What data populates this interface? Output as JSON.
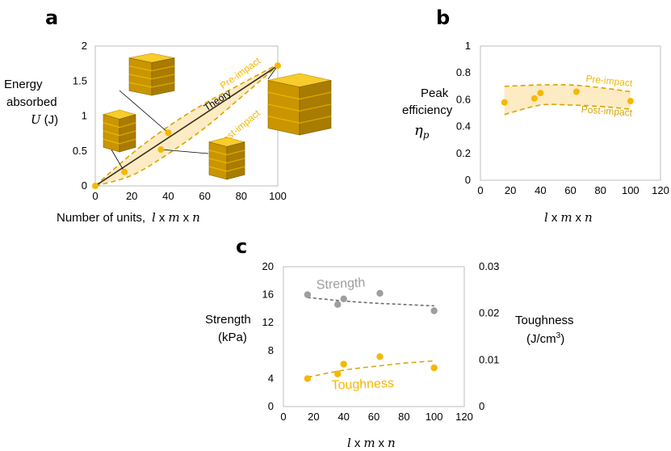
{
  "chart_data": [
    {
      "panel": "a",
      "type": "scatter",
      "ylabel_lines": [
        "Energy",
        "absorbed"
      ],
      "ylabel_symbol": "U",
      "ylabel_unit": "(J)",
      "xlabel": "Number of units,",
      "xlabel_math": [
        "l",
        "x",
        "m",
        "x",
        "n"
      ],
      "xlim": [
        0,
        100
      ],
      "ylim": [
        0,
        2
      ],
      "xticks": [
        0,
        20,
        40,
        60,
        80,
        100
      ],
      "yticks": [
        0,
        0.5,
        1,
        1.5,
        2
      ],
      "points": {
        "x": [
          0,
          16,
          36,
          40,
          100
        ],
        "y": [
          0,
          0.2,
          0.52,
          0.76,
          1.72
        ]
      },
      "theory": {
        "label": "Theory",
        "x": [
          0,
          100
        ],
        "y": [
          0,
          1.72
        ]
      },
      "band": {
        "upper": {
          "label": "Pre-impact",
          "x": [
            0,
            20,
            40,
            60,
            80,
            100
          ],
          "y": [
            0,
            0.46,
            0.85,
            1.18,
            1.46,
            1.74
          ]
        },
        "lower": {
          "label": "Post-impact",
          "x": [
            0,
            20,
            40,
            60,
            80,
            100
          ],
          "y": [
            0,
            0.15,
            0.46,
            0.83,
            1.27,
            1.72
          ]
        }
      },
      "insets": [
        "lattice-4x4x1",
        "lattice-4x4x2",
        "lattice-3x3x4",
        "lattice-4x4x4",
        "lattice-5x5x4"
      ],
      "color": "#F5B800"
    },
    {
      "panel": "b",
      "type": "scatter",
      "ylabel_lines": [
        "Peak",
        "efficiency"
      ],
      "ylabel_symbol": "η",
      "ylabel_sub": "p",
      "xlabel_math": [
        "l",
        "x",
        "m",
        "x",
        "n"
      ],
      "xlim": [
        0,
        120
      ],
      "ylim": [
        0,
        1
      ],
      "xticks": [
        0,
        20,
        40,
        60,
        80,
        100,
        120
      ],
      "yticks": [
        0,
        0.2,
        0.4,
        0.6,
        0.8,
        1
      ],
      "points": {
        "x": [
          16,
          36,
          40,
          64,
          100
        ],
        "y": [
          0.58,
          0.61,
          0.65,
          0.66,
          0.59
        ]
      },
      "band": {
        "upper": {
          "label": "Pre-impact",
          "x": [
            16,
            40,
            60,
            80,
            100
          ],
          "y": [
            0.7,
            0.71,
            0.71,
            0.69,
            0.66
          ]
        },
        "lower": {
          "label": "Post-impact",
          "x": [
            16,
            40,
            60,
            80,
            100
          ],
          "y": [
            0.49,
            0.56,
            0.56,
            0.55,
            0.53
          ]
        }
      },
      "color": "#F5B800"
    },
    {
      "panel": "c",
      "type": "scatter",
      "ylabel_lines": [
        "Strength",
        "(kPa)"
      ],
      "y2label_lines": [
        "Toughness",
        "(J/cm",
        "3",
        ")"
      ],
      "xlabel_math": [
        "l",
        "x",
        "m",
        "x",
        "n"
      ],
      "xlim": [
        0,
        120
      ],
      "ylim": [
        0,
        20
      ],
      "y2lim": [
        0,
        0.03
      ],
      "xticks": [
        0,
        20,
        40,
        60,
        80,
        100,
        120
      ],
      "yticks": [
        0,
        4,
        8,
        12,
        16,
        20
      ],
      "y2ticks": [
        0,
        0.01,
        0.02,
        0.03
      ],
      "series": [
        {
          "name": "Strength",
          "axis": "left",
          "x": [
            16,
            36,
            40,
            64,
            100
          ],
          "y": [
            16.0,
            14.6,
            15.4,
            16.2,
            13.7
          ],
          "trend": {
            "x": [
              16,
              40,
              60,
              80,
              100
            ],
            "y": [
              15.6,
              15.1,
              14.8,
              14.6,
              14.4
            ]
          },
          "color": "#9E9E9E"
        },
        {
          "name": "Toughness",
          "axis": "right",
          "x": [
            16,
            36,
            40,
            64,
            100
          ],
          "y": [
            0.006,
            0.007,
            0.0091,
            0.0107,
            0.0083
          ],
          "trend": {
            "x": [
              16,
              40,
              60,
              80,
              100
            ],
            "y": [
              0.0063,
              0.0078,
              0.0086,
              0.0093,
              0.0098
            ]
          },
          "color": "#F5B800"
        }
      ]
    }
  ],
  "panel_labels": {
    "a": "a",
    "b": "b",
    "c": "c"
  },
  "colors": {
    "accent": "#F5B800",
    "band_fill": "#FCEBC3",
    "dash": "#D9A400",
    "grey": "#9E9E9E",
    "theory": "#3A2A1A"
  }
}
